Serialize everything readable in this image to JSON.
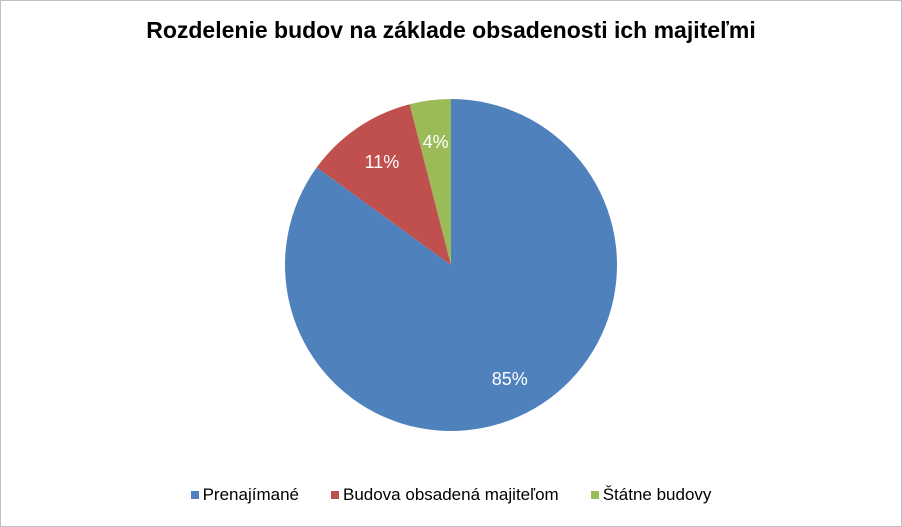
{
  "chart_data": {
    "type": "pie",
    "title": "Rozdelenie budov na základe obsadenosti ich majiteľmi",
    "categories": [
      "Prenajímané",
      "Budova obsadená majiteľom",
      "Štátne budovy"
    ],
    "values": [
      85,
      11,
      4
    ],
    "data_labels": [
      "85%",
      "11%",
      "4%"
    ],
    "colors": [
      "#4f81bd",
      "#c0504d",
      "#9bbb59"
    ],
    "label_color": "#ffffff",
    "start_angle_deg": 0,
    "direction": "clockwise",
    "legend_position": "bottom"
  }
}
